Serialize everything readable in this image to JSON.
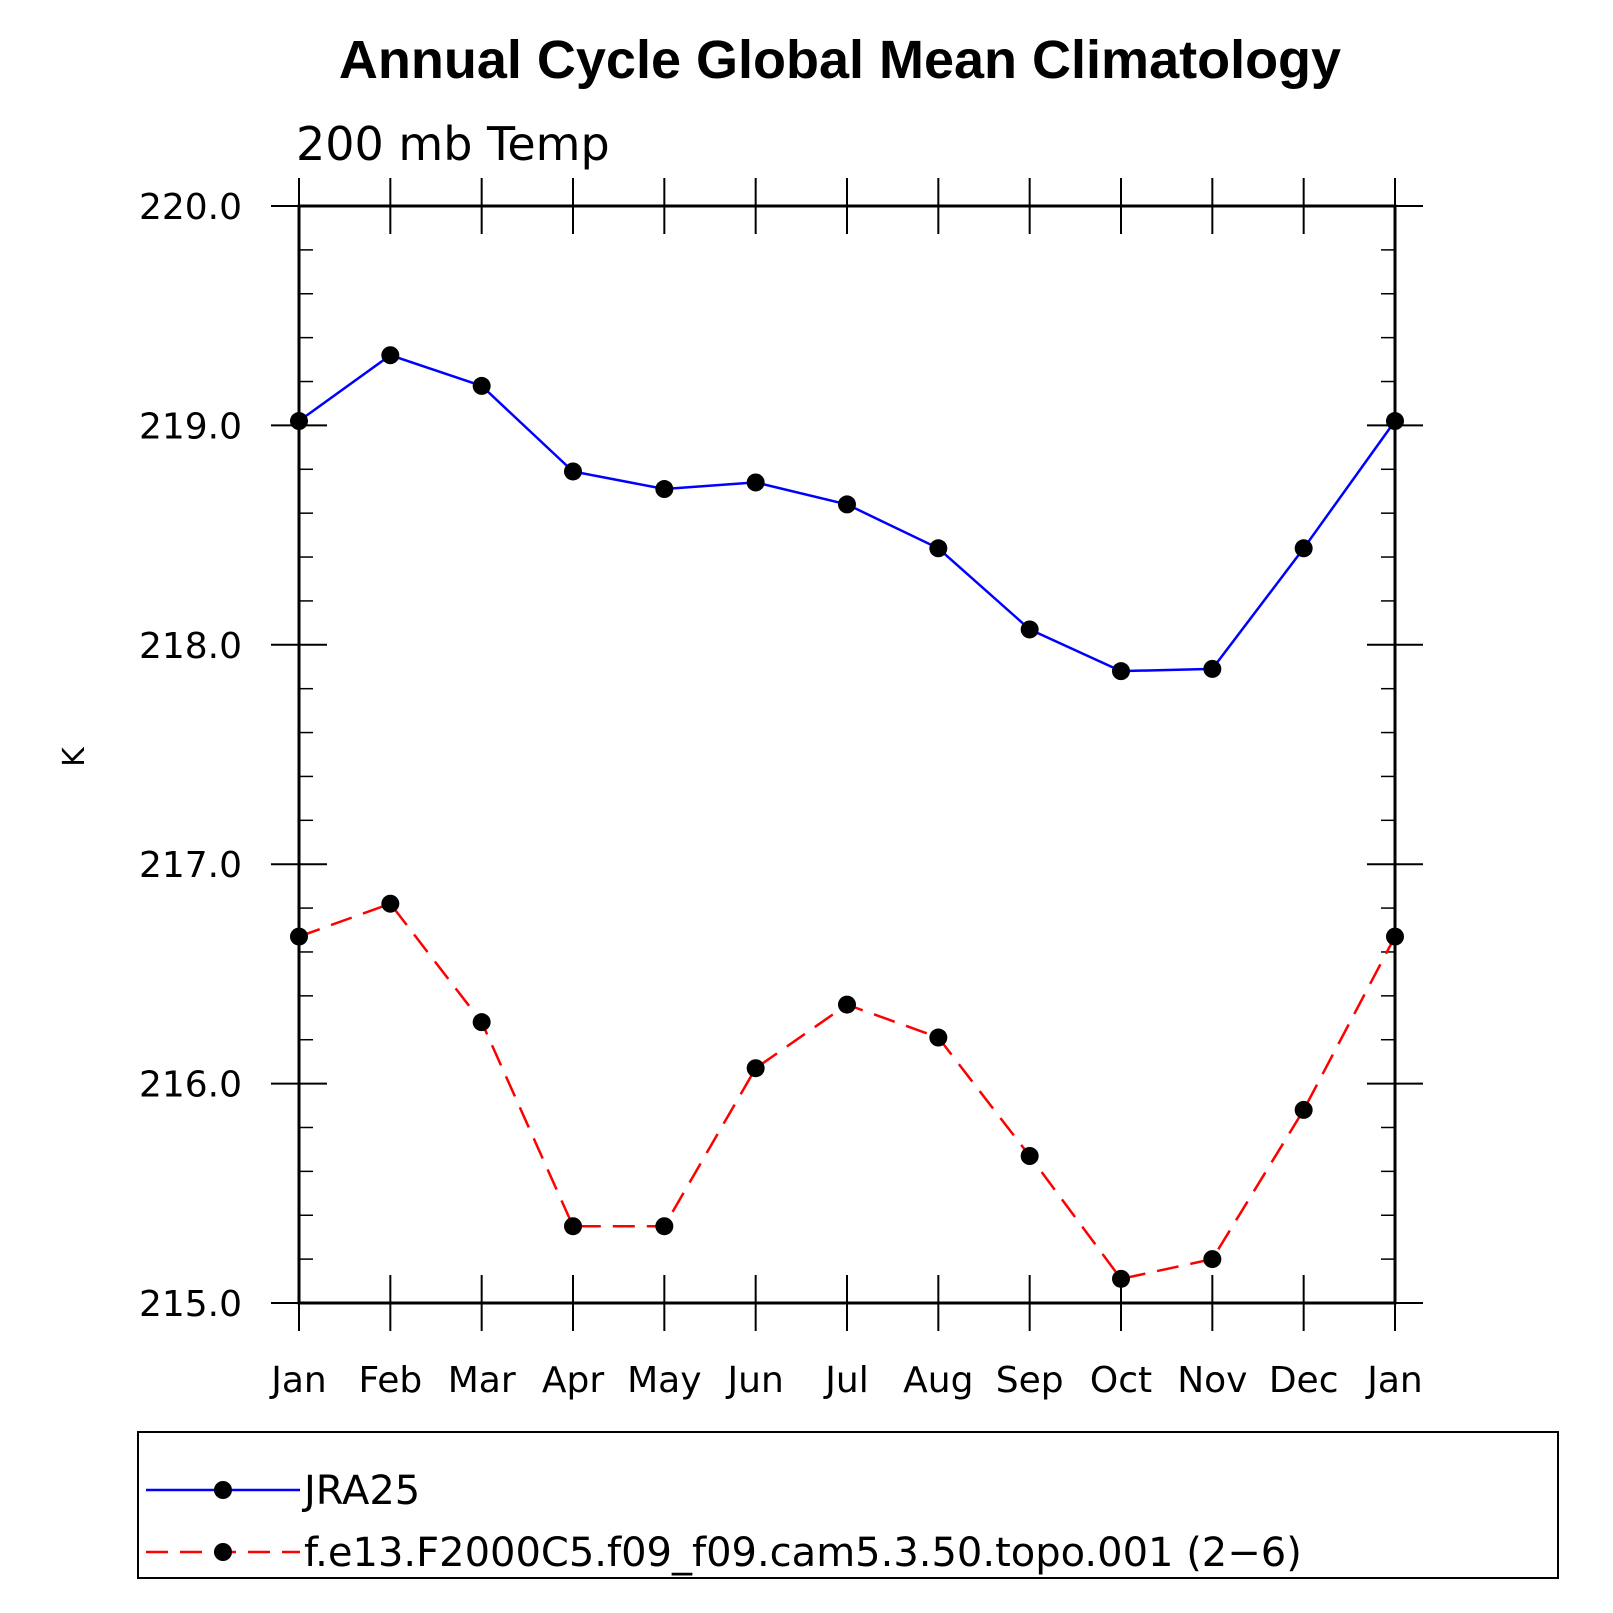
{
  "chart_data": {
    "type": "line",
    "title": "Annual Cycle Global Mean Climatology",
    "subtitle": "200 mb Temp",
    "ylabel": "K",
    "xlabel": "",
    "categories": [
      "Jan",
      "Feb",
      "Mar",
      "Apr",
      "May",
      "Jun",
      "Jul",
      "Aug",
      "Sep",
      "Oct",
      "Nov",
      "Dec",
      "Jan"
    ],
    "ylim": [
      215.0,
      220.0
    ],
    "yticks": [
      "215.0",
      "216.0",
      "217.0",
      "218.0",
      "219.0",
      "220.0"
    ],
    "grid": false,
    "legend_position": "bottom",
    "series": [
      {
        "name": "JRA25",
        "color": "#0000ff",
        "line_style": "solid",
        "marker": "filled-circle",
        "values": [
          219.02,
          219.32,
          219.18,
          218.79,
          218.71,
          218.74,
          218.64,
          218.44,
          218.07,
          217.88,
          217.89,
          218.44,
          219.02
        ]
      },
      {
        "name": "f.e13.F2000C5.f09_f09.cam5.3.50.topo.001 (2−6)",
        "color": "#ff0000",
        "line_style": "dashed",
        "marker": "filled-circle",
        "values": [
          216.67,
          216.82,
          216.28,
          215.35,
          215.35,
          216.07,
          216.36,
          216.21,
          215.67,
          215.11,
          215.2,
          215.88,
          216.67
        ]
      }
    ]
  }
}
